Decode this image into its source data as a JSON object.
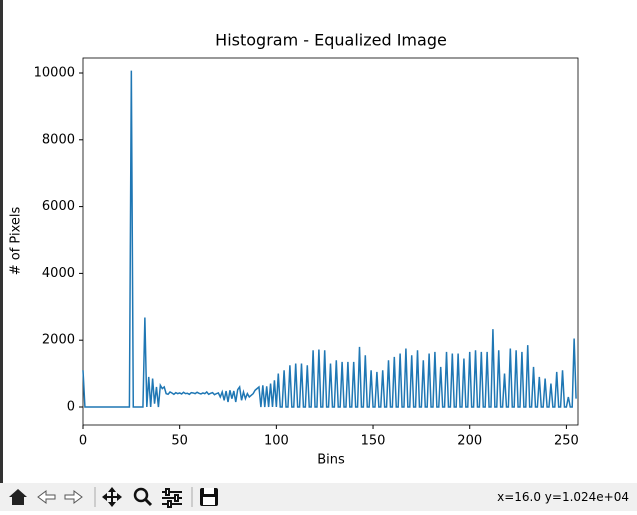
{
  "chart_data": {
    "type": "line",
    "title": "Histogram - Equalized Image",
    "x_label": "Bins",
    "y_label": "# of Pixels",
    "x": [
      0,
      1,
      2,
      3,
      4,
      5,
      6,
      7,
      8,
      9,
      10,
      11,
      12,
      13,
      14,
      15,
      16,
      17,
      18,
      19,
      20,
      21,
      22,
      23,
      24,
      25,
      26,
      27,
      28,
      29,
      30,
      31,
      32,
      33,
      34,
      35,
      36,
      37,
      38,
      39,
      40,
      41,
      42,
      43,
      44,
      45,
      46,
      47,
      48,
      49,
      50,
      51,
      52,
      53,
      54,
      55,
      56,
      57,
      58,
      59,
      60,
      61,
      62,
      63,
      64,
      65,
      66,
      67,
      68,
      69,
      70,
      71,
      72,
      73,
      74,
      75,
      76,
      77,
      78,
      79,
      80,
      81,
      82,
      83,
      84,
      85,
      86,
      87,
      88,
      89,
      90,
      91,
      92,
      93,
      94,
      95,
      96,
      97,
      98,
      99,
      100,
      101,
      102,
      103,
      104,
      105,
      106,
      107,
      108,
      109,
      110,
      111,
      112,
      113,
      114,
      115,
      116,
      117,
      118,
      119,
      120,
      121,
      122,
      123,
      124,
      125,
      126,
      127,
      128,
      129,
      130,
      131,
      132,
      133,
      134,
      135,
      136,
      137,
      138,
      139,
      140,
      141,
      142,
      143,
      144,
      145,
      146,
      147,
      148,
      149,
      150,
      151,
      152,
      153,
      154,
      155,
      156,
      157,
      158,
      159,
      160,
      161,
      162,
      163,
      164,
      165,
      166,
      167,
      168,
      169,
      170,
      171,
      172,
      173,
      174,
      175,
      176,
      177,
      178,
      179,
      180,
      181,
      182,
      183,
      184,
      185,
      186,
      187,
      188,
      189,
      190,
      191,
      192,
      193,
      194,
      195,
      196,
      197,
      198,
      199,
      200,
      201,
      202,
      203,
      204,
      205,
      206,
      207,
      208,
      209,
      210,
      211,
      212,
      213,
      214,
      215,
      216,
      217,
      218,
      219,
      220,
      221,
      222,
      223,
      224,
      225,
      226,
      227,
      228,
      229,
      230,
      231,
      232,
      233,
      234,
      235,
      236,
      237,
      238,
      239,
      240,
      241,
      242,
      243,
      244,
      245,
      246,
      247,
      248,
      249,
      250,
      251,
      252,
      253,
      254,
      255
    ],
    "values": [
      1100,
      0,
      0,
      0,
      0,
      0,
      0,
      0,
      0,
      0,
      0,
      0,
      0,
      0,
      0,
      0,
      0,
      0,
      0,
      0,
      0,
      0,
      0,
      0,
      0,
      10070,
      0,
      0,
      0,
      0,
      0,
      0,
      2680,
      0,
      900,
      0,
      850,
      100,
      600,
      0,
      650,
      550,
      600,
      400,
      380,
      450,
      420,
      380,
      430,
      400,
      420,
      390,
      440,
      400,
      410,
      380,
      430,
      420,
      400,
      440,
      410,
      390,
      420,
      400,
      450,
      380,
      410,
      430,
      370,
      400,
      420,
      300,
      450,
      200,
      480,
      150,
      500,
      250,
      480,
      150,
      520,
      600,
      200,
      450,
      250,
      400,
      300,
      350,
      400,
      500,
      550,
      600,
      0,
      650,
      0,
      620,
      0,
      700,
      0,
      800,
      0,
      1000,
      0,
      0,
      1100,
      0,
      0,
      1250,
      0,
      0,
      1300,
      0,
      0,
      1300,
      0,
      0,
      1250,
      0,
      0,
      1700,
      0,
      0,
      1720,
      0,
      0,
      1700,
      0,
      0,
      1300,
      0,
      0,
      1400,
      0,
      0,
      1350,
      0,
      0,
      1350,
      0,
      0,
      1350,
      0,
      0,
      1800,
      0,
      0,
      1550,
      0,
      0,
      1100,
      0,
      0,
      1050,
      0,
      0,
      1100,
      0,
      0,
      1400,
      0,
      0,
      1500,
      0,
      0,
      1600,
      0,
      0,
      1750,
      0,
      0,
      1550,
      0,
      0,
      1700,
      0,
      0,
      1400,
      0,
      0,
      1600,
      0,
      0,
      1650,
      0,
      0,
      1200,
      0,
      0,
      1650,
      0,
      0,
      1600,
      0,
      0,
      1600,
      0,
      0,
      1450,
      0,
      0,
      1650,
      0,
      0,
      1700,
      0,
      0,
      1650,
      0,
      0,
      1650,
      0,
      0,
      2330,
      0,
      0,
      1700,
      0,
      0,
      1000,
      0,
      0,
      1750,
      0,
      0,
      1700,
      0,
      0,
      1650,
      0,
      0,
      1850,
      0,
      0,
      1200,
      0,
      0,
      900,
      0,
      0,
      850,
      0,
      0,
      700,
      0,
      0,
      1050,
      0,
      0,
      1100,
      0,
      0,
      300,
      0,
      0,
      2050,
      250
    ],
    "color": "#1f77b4",
    "xlim": [
      0,
      256
    ],
    "ylim": [
      -539,
      10449
    ],
    "xticks": [
      0,
      50,
      100,
      150,
      200,
      250
    ],
    "yticks": [
      0,
      2000,
      4000,
      6000,
      8000,
      10000
    ],
    "grid": false
  },
  "status": "x=16.0 y=1.024e+04"
}
